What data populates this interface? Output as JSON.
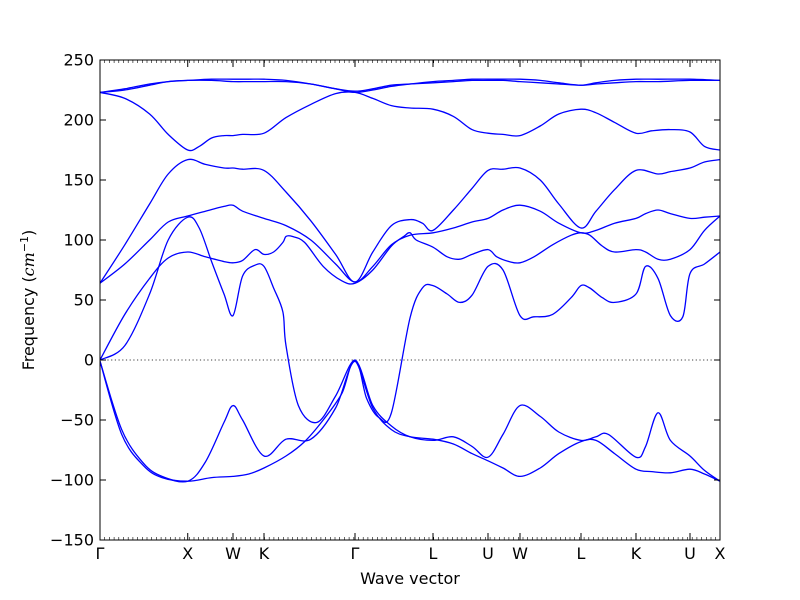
{
  "chart_data": {
    "type": "line",
    "title": "",
    "xlabel": "Wave vector",
    "ylabel_prefix": "Frequency (",
    "ylabel_math": "cm",
    "ylabel_exp": "−1",
    "ylabel_suffix": ")",
    "ylim": [
      -150,
      250
    ],
    "yticks": [
      -150,
      -100,
      -50,
      0,
      50,
      100,
      150,
      200,
      250
    ],
    "ytick_labels": [
      "−150",
      "−100",
      "−50",
      "0",
      "50",
      "100",
      "150",
      "200",
      "250"
    ],
    "xlim": [
      0,
      1
    ],
    "xticks": [
      {
        "pos": 0.0,
        "label": "Γ"
      },
      {
        "pos": 0.1415,
        "label": "X"
      },
      {
        "pos": 0.2145,
        "label": "W"
      },
      {
        "pos": 0.2645,
        "label": "K"
      },
      {
        "pos": 0.4113,
        "label": "Γ"
      },
      {
        "pos": 0.5371,
        "label": "L"
      },
      {
        "pos": 0.6258,
        "label": "U"
      },
      {
        "pos": 0.6774,
        "label": "W"
      },
      {
        "pos": 0.7758,
        "label": "L"
      },
      {
        "pos": 0.8645,
        "label": "K"
      },
      {
        "pos": 0.9516,
        "label": "U"
      },
      {
        "pos": 1.0,
        "label": "X"
      }
    ],
    "zero_line": true,
    "line_color": "#0000ff",
    "series": [
      {
        "x": [
          0.0,
          0.035,
          0.07,
          0.1,
          0.1415,
          0.18,
          0.2145,
          0.24,
          0.2645,
          0.3,
          0.33,
          0.36,
          0.39,
          0.4113,
          0.44,
          0.47,
          0.5,
          0.5371,
          0.57,
          0.6,
          0.6258,
          0.65,
          0.6774,
          0.71,
          0.74,
          0.7758,
          0.8,
          0.83,
          0.8645,
          0.89,
          0.92,
          0.9516,
          0.975,
          1.0
        ],
        "y": [
          -1,
          -62,
          -88,
          -98,
          -101,
          -98,
          -97,
          -95,
          -90,
          -80,
          -68,
          -50,
          -28,
          -1,
          -40,
          -58,
          -64,
          -66,
          -70,
          -78,
          -84,
          -90,
          -97,
          -90,
          -78,
          -68,
          -67,
          -78,
          -91,
          -93,
          -94,
          -91,
          -95,
          -101
        ]
      },
      {
        "x": [
          0.0,
          0.035,
          0.07,
          0.1,
          0.1415,
          0.17,
          0.2,
          0.2145,
          0.23,
          0.2645,
          0.3,
          0.34,
          0.38,
          0.4113,
          0.44,
          0.47,
          0.5,
          0.5371,
          0.57,
          0.6,
          0.6258,
          0.65,
          0.6774,
          0.71,
          0.74,
          0.7758,
          0.8,
          0.82,
          0.8645,
          0.88,
          0.9,
          0.92,
          0.9516,
          0.975,
          1.0
        ],
        "y": [
          -1,
          -58,
          -86,
          -97,
          -101,
          -85,
          -52,
          -38,
          -50,
          -80,
          -66,
          -66,
          -40,
          -1,
          -38,
          -55,
          -64,
          -67,
          -64,
          -72,
          -81,
          -62,
          -38,
          -47,
          -60,
          -67,
          -64,
          -62,
          -81,
          -72,
          -44,
          -67,
          -80,
          -92,
          -101
        ]
      },
      {
        "x": [
          0.0,
          0.04,
          0.08,
          0.11,
          0.1415,
          0.17,
          0.2,
          0.2145,
          0.23,
          0.25,
          0.2645,
          0.28,
          0.295,
          0.3,
          0.31,
          0.33,
          0.36,
          0.39,
          0.4113,
          0.44,
          0.47,
          0.49,
          0.5,
          0.51,
          0.5371,
          0.56,
          0.58,
          0.6,
          0.6258,
          0.64,
          0.66,
          0.6774,
          0.7,
          0.73,
          0.76,
          0.7758,
          0.79,
          0.81,
          0.83,
          0.8645,
          0.88,
          0.9,
          0.92,
          0.9516,
          0.975,
          1.0
        ],
        "y": [
          0,
          38,
          68,
          85,
          90,
          86,
          82,
          81,
          83,
          92,
          88,
          90,
          98,
          103,
          103,
          98,
          78,
          66,
          64,
          75,
          95,
          103,
          106,
          100,
          94,
          86,
          84,
          88,
          92,
          86,
          82,
          81,
          86,
          96,
          104,
          106,
          104,
          95,
          90,
          92,
          90,
          84,
          84,
          92,
          108,
          120
        ]
      },
      {
        "x": [
          0.0,
          0.04,
          0.08,
          0.11,
          0.1415,
          0.16,
          0.18,
          0.2,
          0.2145,
          0.23,
          0.25,
          0.2645,
          0.28,
          0.295,
          0.3,
          0.32,
          0.35,
          0.38,
          0.4113,
          0.43,
          0.45,
          0.47,
          0.5,
          0.52,
          0.5371,
          0.56,
          0.58,
          0.6,
          0.6258,
          0.65,
          0.6774,
          0.7,
          0.73,
          0.76,
          0.7758,
          0.79,
          0.81,
          0.83,
          0.8645,
          0.88,
          0.9,
          0.92,
          0.94,
          0.9516,
          0.975,
          1.0
        ],
        "y": [
          0,
          12,
          55,
          100,
          119,
          110,
          82,
          55,
          37,
          70,
          79,
          78,
          60,
          40,
          12,
          -38,
          -52,
          -30,
          0,
          -32,
          -48,
          -44,
          35,
          60,
          62,
          55,
          48,
          54,
          78,
          75,
          37,
          36,
          38,
          52,
          62,
          60,
          52,
          48,
          55,
          78,
          68,
          37,
          36,
          72,
          80,
          90
        ]
      },
      {
        "x": [
          0.0,
          0.04,
          0.08,
          0.11,
          0.1415,
          0.17,
          0.2,
          0.2145,
          0.23,
          0.2645,
          0.3,
          0.34,
          0.38,
          0.4113,
          0.44,
          0.47,
          0.5,
          0.5371,
          0.57,
          0.6,
          0.6258,
          0.65,
          0.6774,
          0.71,
          0.74,
          0.7758,
          0.8,
          0.83,
          0.8645,
          0.88,
          0.9,
          0.92,
          0.9516,
          0.975,
          1.0
        ],
        "y": [
          64,
          80,
          100,
          115,
          120,
          124,
          128,
          129,
          124,
          118,
          112,
          100,
          80,
          65,
          78,
          96,
          104,
          106,
          110,
          115,
          118,
          125,
          129,
          124,
          114,
          106,
          108,
          114,
          118,
          122,
          125,
          122,
          118,
          119,
          120
        ]
      },
      {
        "x": [
          0.0,
          0.04,
          0.08,
          0.11,
          0.1415,
          0.17,
          0.2,
          0.2145,
          0.23,
          0.2645,
          0.3,
          0.34,
          0.38,
          0.4113,
          0.44,
          0.47,
          0.5,
          0.52,
          0.5371,
          0.57,
          0.6,
          0.6258,
          0.65,
          0.6774,
          0.71,
          0.74,
          0.7758,
          0.8,
          0.83,
          0.8645,
          0.9,
          0.92,
          0.9516,
          0.975,
          1.0
        ],
        "y": [
          64,
          96,
          130,
          155,
          167,
          163,
          160,
          160,
          159,
          158,
          140,
          116,
          88,
          65,
          90,
          112,
          117,
          114,
          108,
          125,
          143,
          158,
          159,
          160,
          150,
          130,
          110,
          124,
          142,
          158,
          155,
          157,
          160,
          165,
          167
        ]
      },
      {
        "x": [
          0.0,
          0.04,
          0.08,
          0.11,
          0.1415,
          0.16,
          0.18,
          0.2,
          0.2145,
          0.23,
          0.2645,
          0.3,
          0.34,
          0.38,
          0.4113,
          0.44,
          0.47,
          0.5,
          0.5371,
          0.57,
          0.6,
          0.6258,
          0.65,
          0.6774,
          0.71,
          0.74,
          0.7758,
          0.8,
          0.83,
          0.8645,
          0.89,
          0.92,
          0.9516,
          0.975,
          1.0
        ],
        "y": [
          223,
          218,
          205,
          188,
          175,
          178,
          185,
          187,
          187,
          188,
          189,
          202,
          213,
          222,
          223,
          218,
          212,
          210,
          209,
          203,
          192,
          189,
          188,
          187,
          195,
          205,
          209,
          206,
          198,
          189,
          191,
          192,
          190,
          178,
          175
        ]
      },
      {
        "x": [
          0.0,
          0.04,
          0.08,
          0.11,
          0.1415,
          0.18,
          0.2145,
          0.24,
          0.2645,
          0.3,
          0.34,
          0.38,
          0.4113,
          0.44,
          0.47,
          0.5,
          0.5371,
          0.57,
          0.6,
          0.6258,
          0.65,
          0.6774,
          0.71,
          0.74,
          0.7758,
          0.8,
          0.83,
          0.8645,
          0.9,
          0.9516,
          1.0
        ],
        "y": [
          223,
          226,
          230,
          232,
          233,
          233,
          232,
          232,
          232,
          232,
          230,
          226,
          224,
          226,
          229,
          230,
          231,
          232,
          233,
          233,
          233,
          232,
          231,
          230,
          229,
          230,
          231,
          232,
          232,
          233,
          233
        ]
      },
      {
        "x": [
          0.0,
          0.04,
          0.08,
          0.11,
          0.1415,
          0.18,
          0.2145,
          0.24,
          0.2645,
          0.3,
          0.34,
          0.38,
          0.4113,
          0.44,
          0.47,
          0.5,
          0.5371,
          0.57,
          0.6,
          0.6258,
          0.65,
          0.6774,
          0.71,
          0.74,
          0.7758,
          0.8,
          0.83,
          0.8645,
          0.9,
          0.9516,
          1.0
        ],
        "y": [
          223,
          225,
          229,
          232,
          233,
          234,
          234,
          234,
          234,
          233,
          230,
          226,
          223,
          225,
          228,
          230,
          232,
          233,
          234,
          234,
          234,
          234,
          233,
          231,
          229,
          231,
          233,
          234,
          234,
          234,
          233
        ]
      }
    ]
  }
}
